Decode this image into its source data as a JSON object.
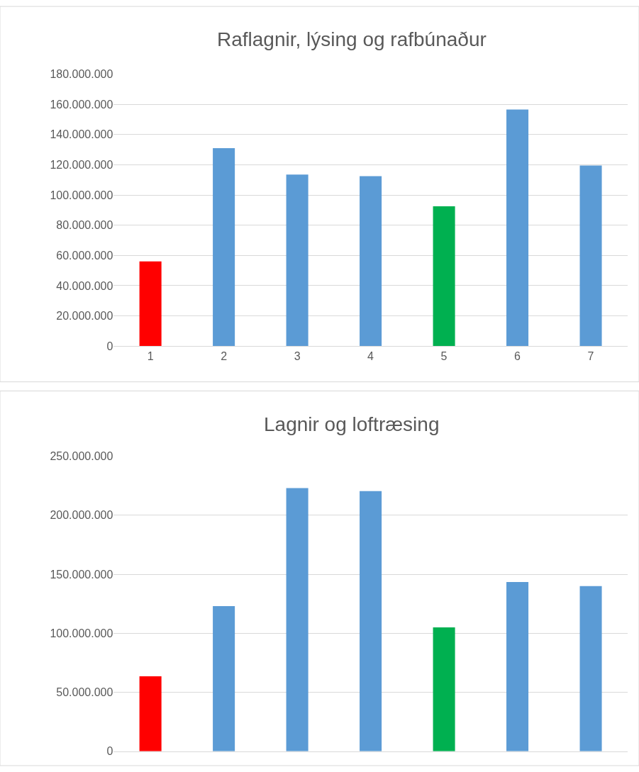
{
  "chart_data": [
    {
      "type": "bar",
      "title": "Raflagnir, lýsing og rafbúnaður",
      "categories": [
        "1",
        "2",
        "3",
        "4",
        "5",
        "6",
        "7"
      ],
      "values": [
        56000000,
        131000000,
        113500000,
        112500000,
        92500000,
        156500000,
        119500000
      ],
      "colors": [
        "#ff0000",
        "#5b9bd5",
        "#5b9bd5",
        "#5b9bd5",
        "#00b050",
        "#5b9bd5",
        "#5b9bd5"
      ],
      "ylim": [
        0,
        180000000
      ],
      "yticks": [
        {
          "value": 0,
          "label": "0"
        },
        {
          "value": 20000000,
          "label": "20.000.000"
        },
        {
          "value": 40000000,
          "label": "40.000.000"
        },
        {
          "value": 60000000,
          "label": "60.000.000"
        },
        {
          "value": 80000000,
          "label": "80.000.000"
        },
        {
          "value": 100000000,
          "label": "100.000.000"
        },
        {
          "value": 120000000,
          "label": "120.000.000"
        },
        {
          "value": 140000000,
          "label": "140.000.000"
        },
        {
          "value": 160000000,
          "label": "160.000.000"
        },
        {
          "value": 180000000,
          "label": "180.000.000"
        }
      ],
      "grid": "y"
    },
    {
      "type": "bar",
      "title": "Lagnir og loftræsing",
      "categories": [
        null,
        null,
        null,
        null,
        null,
        null,
        null
      ],
      "values": [
        63500000,
        123000000,
        223000000,
        220500000,
        105000000,
        143500000,
        140000000
      ],
      "colors": [
        "#ff0000",
        "#5b9bd5",
        "#5b9bd5",
        "#5b9bd5",
        "#00b050",
        "#5b9bd5",
        "#5b9bd5"
      ],
      "ylim": [
        0,
        250000000
      ],
      "yticks": [
        {
          "value": 0,
          "label": "0"
        },
        {
          "value": 50000000,
          "label": "50.000.000"
        },
        {
          "value": 100000000,
          "label": "100.000.000"
        },
        {
          "value": 150000000,
          "label": "150.000.000"
        },
        {
          "value": 200000000,
          "label": "200.000.000"
        },
        {
          "value": 250000000,
          "label": "250.000.000"
        }
      ],
      "grid": "y",
      "tick_labels": "y"
    }
  ]
}
